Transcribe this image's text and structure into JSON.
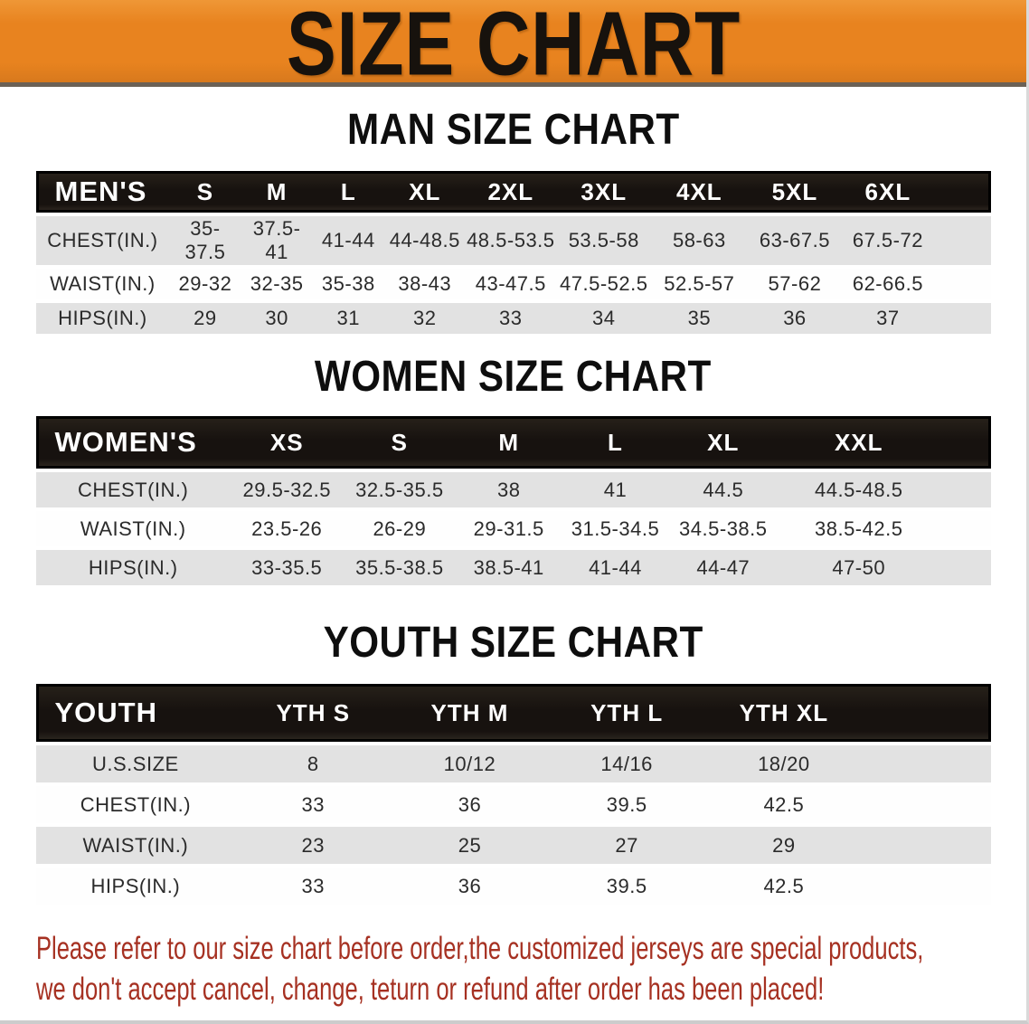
{
  "banner": {
    "title": "SIZE CHART",
    "bg_color": "#E8831F"
  },
  "colors": {
    "banner_orange": "#E8831F",
    "table_header_black": "#17120F",
    "row_gray": "#E2E2E2",
    "footer_red": "#A63122"
  },
  "men": {
    "heading": "MAN SIZE CHART",
    "header_label": "MEN'S",
    "sizes": [
      "S",
      "M",
      "L",
      "XL",
      "2XL",
      "3XL",
      "4XL",
      "5XL",
      "6XL"
    ],
    "rows": [
      {
        "label": "CHEST(IN.)",
        "values": [
          "35-37.5",
          "37.5-41",
          "41-44",
          "44-48.5",
          "48.5-53.5",
          "53.5-58",
          "58-63",
          "63-67.5",
          "67.5-72"
        ]
      },
      {
        "label": "WAIST(IN.)",
        "values": [
          "29-32",
          "32-35",
          "35-38",
          "38-43",
          "43-47.5",
          "47.5-52.5",
          "52.5-57",
          "57-62",
          "62-66.5"
        ]
      },
      {
        "label": "HIPS(IN.)",
        "values": [
          "29",
          "30",
          "31",
          "32",
          "33",
          "34",
          "35",
          "36",
          "37"
        ]
      }
    ]
  },
  "women": {
    "heading": "WOMEN SIZE CHART",
    "header_label": "WOMEN'S",
    "sizes": [
      "XS",
      "S",
      "M",
      "L",
      "XL",
      "XXL"
    ],
    "rows": [
      {
        "label": "CHEST(IN.)",
        "values": [
          "29.5-32.5",
          "32.5-35.5",
          "38",
          "41",
          "44.5",
          "44.5-48.5"
        ]
      },
      {
        "label": "WAIST(IN.)",
        "values": [
          "23.5-26",
          "26-29",
          "29-31.5",
          "31.5-34.5",
          "34.5-38.5",
          "38.5-42.5"
        ]
      },
      {
        "label": "HIPS(IN.)",
        "values": [
          "33-35.5",
          "35.5-38.5",
          "38.5-41",
          "41-44",
          "44-47",
          "47-50"
        ]
      }
    ]
  },
  "youth": {
    "heading": "YOUTH SIZE CHART",
    "header_label": "YOUTH",
    "sizes": [
      "YTH S",
      "YTH M",
      "YTH L",
      "YTH XL"
    ],
    "rows": [
      {
        "label": "U.S.SIZE",
        "values": [
          "8",
          "10/12",
          "14/16",
          "18/20"
        ]
      },
      {
        "label": "CHEST(IN.)",
        "values": [
          "33",
          "36",
          "39.5",
          "42.5"
        ]
      },
      {
        "label": "WAIST(IN.)",
        "values": [
          "23",
          "25",
          "27",
          "29"
        ]
      },
      {
        "label": "HIPS(IN.)",
        "values": [
          "33",
          "36",
          "39.5",
          "42.5"
        ]
      }
    ]
  },
  "footer": {
    "line1": "Please refer to our size chart before order,the customized jerseys are special products,",
    "line2": "we don't accept cancel, change, teturn or refund after order has been placed!"
  }
}
